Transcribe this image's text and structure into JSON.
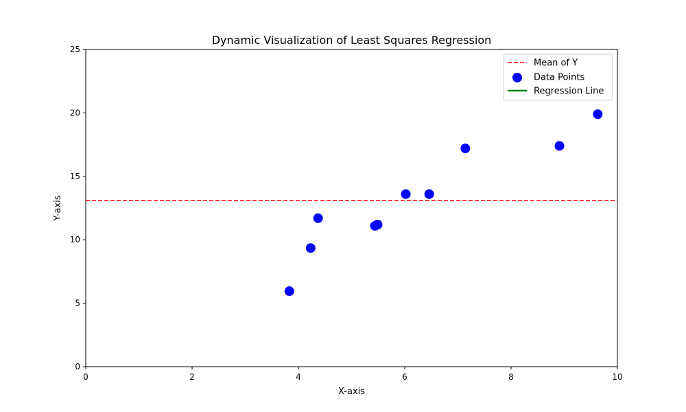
{
  "chart_data": {
    "type": "scatter",
    "title": "Dynamic Visualization of Least Squares Regression",
    "xlabel": "X-axis",
    "ylabel": "Y-axis",
    "xlim": [
      0,
      10
    ],
    "ylim": [
      0,
      25
    ],
    "xticks": [
      0,
      2,
      4,
      6,
      8,
      10
    ],
    "yticks": [
      0,
      5,
      10,
      15,
      20,
      25
    ],
    "grid": false,
    "legend": {
      "placement": "top-right",
      "entries": [
        {
          "label": "Mean of Y",
          "kind": "dashed-line",
          "color": "#ff0000"
        },
        {
          "label": "Data Points",
          "kind": "marker",
          "color": "#0000ff"
        },
        {
          "label": "Regression Line",
          "kind": "solid-line",
          "color": "#008000"
        }
      ]
    },
    "series": [
      {
        "name": "Data Points",
        "color": "#0000ff",
        "points": [
          {
            "x": 3.83,
            "y": 5.95
          },
          {
            "x": 4.23,
            "y": 9.35
          },
          {
            "x": 4.37,
            "y": 11.7
          },
          {
            "x": 5.44,
            "y": 11.1
          },
          {
            "x": 5.49,
            "y": 11.2
          },
          {
            "x": 6.02,
            "y": 13.6
          },
          {
            "x": 6.46,
            "y": 13.6
          },
          {
            "x": 7.14,
            "y": 17.2
          },
          {
            "x": 8.91,
            "y": 17.4
          },
          {
            "x": 9.63,
            "y": 19.9
          }
        ]
      }
    ],
    "mean_y": {
      "name": "Mean of Y",
      "value": 13.1,
      "color": "#ff0000"
    }
  }
}
